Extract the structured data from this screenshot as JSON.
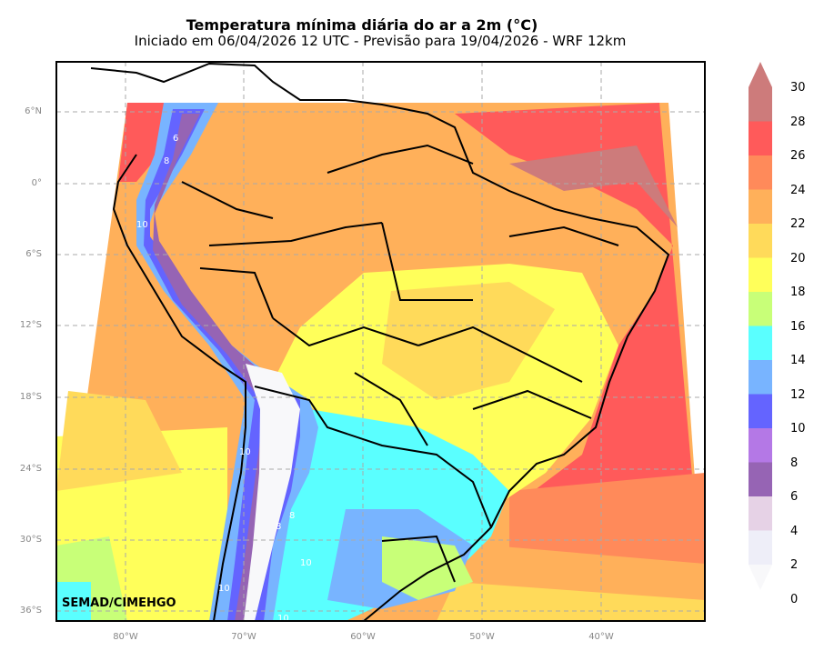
{
  "title": "Temperatura mínima diária do ar a 2m (°C)",
  "subtitle": "Iniciado em 06/04/2026 12 UTC - Previsão para 19/04/2026 - WRF 12km",
  "credit": "SEMAD/CIMEHGO",
  "lat_ticks": [
    "6°N",
    "0°",
    "6°S",
    "12°S",
    "18°S",
    "24°S",
    "30°S",
    "36°S"
  ],
  "lon_ticks": [
    "80°W",
    "70°W",
    "60°W",
    "50°W",
    "40°W"
  ],
  "colorbar": {
    "labels": [
      "30",
      "28",
      "26",
      "24",
      "22",
      "20",
      "18",
      "16",
      "14",
      "12",
      "10",
      "8",
      "6",
      "4",
      "2",
      "0"
    ],
    "colors": [
      "#cd7b7b",
      "#ff5a5a",
      "#ff8a5a",
      "#ffb05a",
      "#ffda5a",
      "#ffff5a",
      "#c8ff78",
      "#5affff",
      "#78b4ff",
      "#6464ff",
      "#b478e6",
      "#9664b4",
      "#e6d2e6",
      "#eeeef8",
      "#f8f8fa"
    ]
  },
  "map_contour_labels": [
    "6",
    "8",
    "10",
    "10",
    "10",
    "8",
    "10",
    "8",
    "10"
  ]
}
